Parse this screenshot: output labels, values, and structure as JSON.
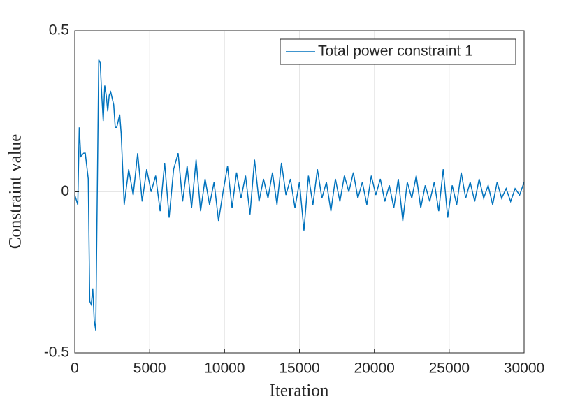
{
  "chart_data": {
    "type": "line",
    "xlabel": "Iteration",
    "ylabel": "Constraint value",
    "x": [
      0,
      200,
      300,
      400,
      600,
      700,
      900,
      1000,
      1100,
      1200,
      1300,
      1400,
      1600,
      1700,
      1800,
      1900,
      2000,
      2100,
      2200,
      2300,
      2400,
      2500,
      2600,
      2700,
      2800,
      2900,
      3000,
      3100,
      3300,
      3600,
      3900,
      4200,
      4500,
      4800,
      5100,
      5400,
      5700,
      6000,
      6300,
      6600,
      6900,
      7200,
      7500,
      7800,
      8100,
      8400,
      8700,
      9000,
      9300,
      9600,
      9900,
      10200,
      10500,
      10800,
      11100,
      11400,
      11700,
      12000,
      12300,
      12600,
      12900,
      13200,
      13500,
      13800,
      14100,
      14400,
      14700,
      15000,
      15300,
      15600,
      15900,
      16200,
      16500,
      16800,
      17100,
      17400,
      17700,
      18000,
      18300,
      18600,
      18900,
      19200,
      19500,
      19800,
      20100,
      20400,
      20700,
      21000,
      21300,
      21600,
      21900,
      22200,
      22500,
      22800,
      23100,
      23400,
      23700,
      24000,
      24300,
      24600,
      24900,
      25200,
      25500,
      25800,
      26100,
      26400,
      26700,
      27000,
      27300,
      27600,
      27900,
      28200,
      28500,
      28800,
      29100,
      29400,
      29700,
      30000
    ],
    "series": [
      {
        "name": "Total power constraint 1",
        "color": "#0072bd",
        "values": [
          -0.01,
          -0.04,
          0.2,
          0.11,
          0.12,
          0.12,
          0.04,
          -0.34,
          -0.35,
          -0.3,
          -0.4,
          -0.43,
          0.41,
          0.4,
          0.3,
          0.22,
          0.33,
          0.3,
          0.25,
          0.3,
          0.31,
          0.29,
          0.27,
          0.2,
          0.2,
          0.22,
          0.24,
          0.18,
          -0.04,
          0.07,
          -0.01,
          0.12,
          -0.03,
          0.07,
          0.0,
          0.05,
          -0.06,
          0.09,
          -0.08,
          0.07,
          0.12,
          -0.03,
          0.08,
          -0.05,
          0.1,
          -0.06,
          0.04,
          -0.04,
          0.03,
          -0.09,
          0.0,
          0.08,
          -0.05,
          0.06,
          -0.02,
          0.05,
          -0.07,
          0.1,
          -0.03,
          0.04,
          -0.02,
          0.06,
          -0.04,
          0.09,
          -0.01,
          0.04,
          -0.05,
          0.03,
          -0.12,
          0.05,
          -0.04,
          0.07,
          -0.02,
          0.03,
          -0.06,
          0.04,
          -0.03,
          0.05,
          0.0,
          0.06,
          -0.02,
          0.03,
          -0.04,
          0.05,
          -0.01,
          0.04,
          -0.03,
          0.02,
          -0.05,
          0.04,
          -0.09,
          0.03,
          -0.02,
          0.05,
          -0.05,
          0.02,
          -0.03,
          0.03,
          -0.06,
          0.07,
          -0.08,
          0.02,
          -0.04,
          0.06,
          -0.02,
          0.03,
          -0.03,
          0.04,
          -0.02,
          0.02,
          -0.04,
          0.03,
          -0.02,
          0.01,
          -0.03,
          0.01,
          -0.01,
          0.03
        ]
      }
    ],
    "xlim": [
      0,
      30000
    ],
    "xticks": [
      0,
      5000,
      10000,
      15000,
      20000,
      25000,
      30000
    ],
    "ylim": [
      -0.5,
      0.5
    ],
    "yticks": [
      -0.5,
      0,
      0.5
    ],
    "grid": true,
    "legend": "top-right"
  }
}
